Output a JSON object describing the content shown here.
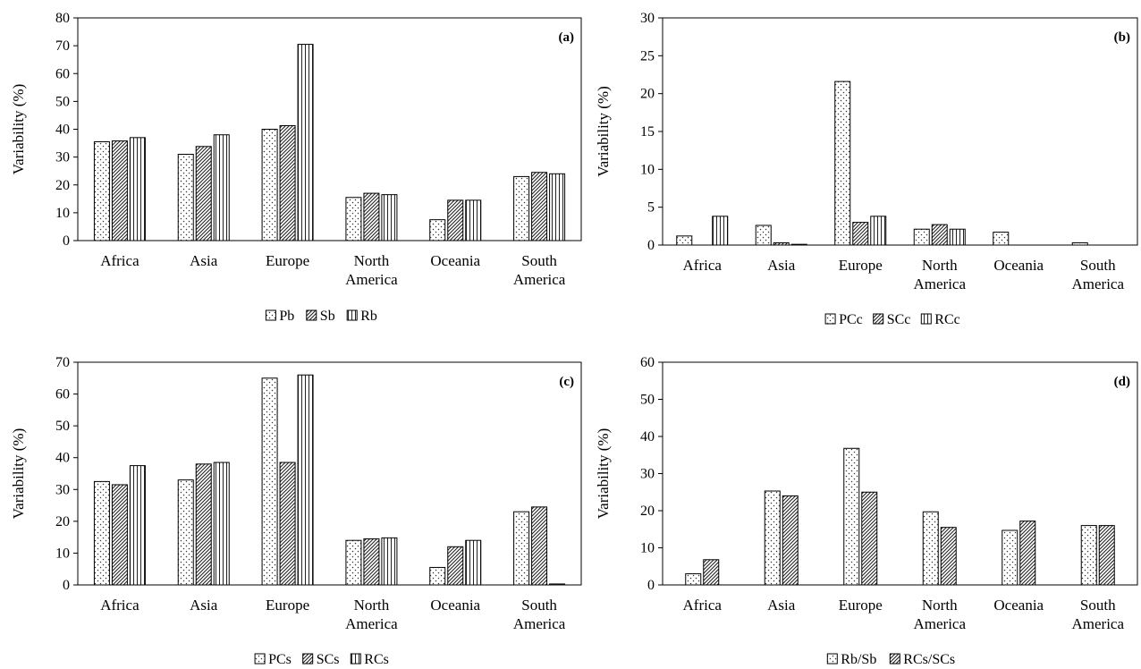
{
  "chart_data": [
    {
      "type": "bar",
      "panel_label": "(a)",
      "ylabel": "Variability (%)",
      "ylim": [
        0,
        80
      ],
      "yticks": [
        0,
        10,
        20,
        30,
        40,
        50,
        60,
        70,
        80
      ],
      "categories": [
        [
          "Africa"
        ],
        [
          "Asia"
        ],
        [
          "Europe"
        ],
        [
          "North",
          "America"
        ],
        [
          "Oceania"
        ],
        [
          "South",
          "America"
        ]
      ],
      "legend_position": "bottom",
      "series": [
        {
          "name": "Pb",
          "pattern": "dots",
          "values": [
            35.5,
            31,
            40,
            15.5,
            7.5,
            23
          ]
        },
        {
          "name": "Sb",
          "pattern": "diag",
          "values": [
            35.8,
            33.8,
            41.3,
            17,
            14.5,
            24.5
          ]
        },
        {
          "name": "Rb",
          "pattern": "vert",
          "values": [
            37,
            38,
            70.5,
            16.5,
            14.5,
            24
          ]
        }
      ]
    },
    {
      "type": "bar",
      "panel_label": "(b)",
      "ylabel": "Variability (%)",
      "ylim": [
        0,
        30
      ],
      "yticks": [
        0,
        5,
        10,
        15,
        20,
        25,
        30
      ],
      "categories": [
        [
          "Africa"
        ],
        [
          "Asia"
        ],
        [
          "Europe"
        ],
        [
          "North",
          "America"
        ],
        [
          "Oceania"
        ],
        [
          "South",
          "America"
        ]
      ],
      "legend_position": "bottom",
      "series": [
        {
          "name": "PCc",
          "pattern": "dots",
          "values": [
            1.2,
            2.6,
            21.6,
            2.1,
            1.7,
            0.3
          ]
        },
        {
          "name": "SCc",
          "pattern": "diag",
          "values": [
            0,
            0.3,
            3,
            2.7,
            0,
            0
          ]
        },
        {
          "name": "RCc",
          "pattern": "vert",
          "values": [
            3.8,
            0.1,
            3.8,
            2.1,
            0,
            0
          ]
        }
      ]
    },
    {
      "type": "bar",
      "panel_label": "(c)",
      "ylabel": "Variability (%)",
      "ylim": [
        0,
        70
      ],
      "yticks": [
        0,
        10,
        20,
        30,
        40,
        50,
        60,
        70
      ],
      "categories": [
        [
          "Africa"
        ],
        [
          "Asia"
        ],
        [
          "Europe"
        ],
        [
          "North",
          "America"
        ],
        [
          "Oceania"
        ],
        [
          "South",
          "America"
        ]
      ],
      "legend_position": "bottom",
      "series": [
        {
          "name": "PCs",
          "pattern": "dots",
          "values": [
            32.5,
            33,
            65,
            14,
            5.5,
            23
          ]
        },
        {
          "name": "SCs",
          "pattern": "diag",
          "values": [
            31.5,
            38,
            38.5,
            14.5,
            12,
            24.5
          ]
        },
        {
          "name": "RCs",
          "pattern": "vert",
          "values": [
            37.5,
            38.5,
            66,
            14.8,
            14,
            0.3
          ]
        }
      ]
    },
    {
      "type": "bar",
      "panel_label": "(d)",
      "ylabel": "Variability (%)",
      "ylim": [
        0,
        60
      ],
      "yticks": [
        0,
        10,
        20,
        30,
        40,
        50,
        60
      ],
      "categories": [
        [
          "Africa"
        ],
        [
          "Asia"
        ],
        [
          "Europe"
        ],
        [
          "North",
          "America"
        ],
        [
          "Oceania"
        ],
        [
          "South",
          "America"
        ]
      ],
      "legend_position": "bottom",
      "series": [
        {
          "name": "Rb/Sb",
          "pattern": "dots",
          "values": [
            3,
            25.3,
            36.8,
            19.7,
            14.7,
            16
          ]
        },
        {
          "name": "RCs/SCs",
          "pattern": "diag",
          "values": [
            6.8,
            24,
            25,
            15.5,
            17.2,
            16
          ]
        }
      ]
    }
  ]
}
